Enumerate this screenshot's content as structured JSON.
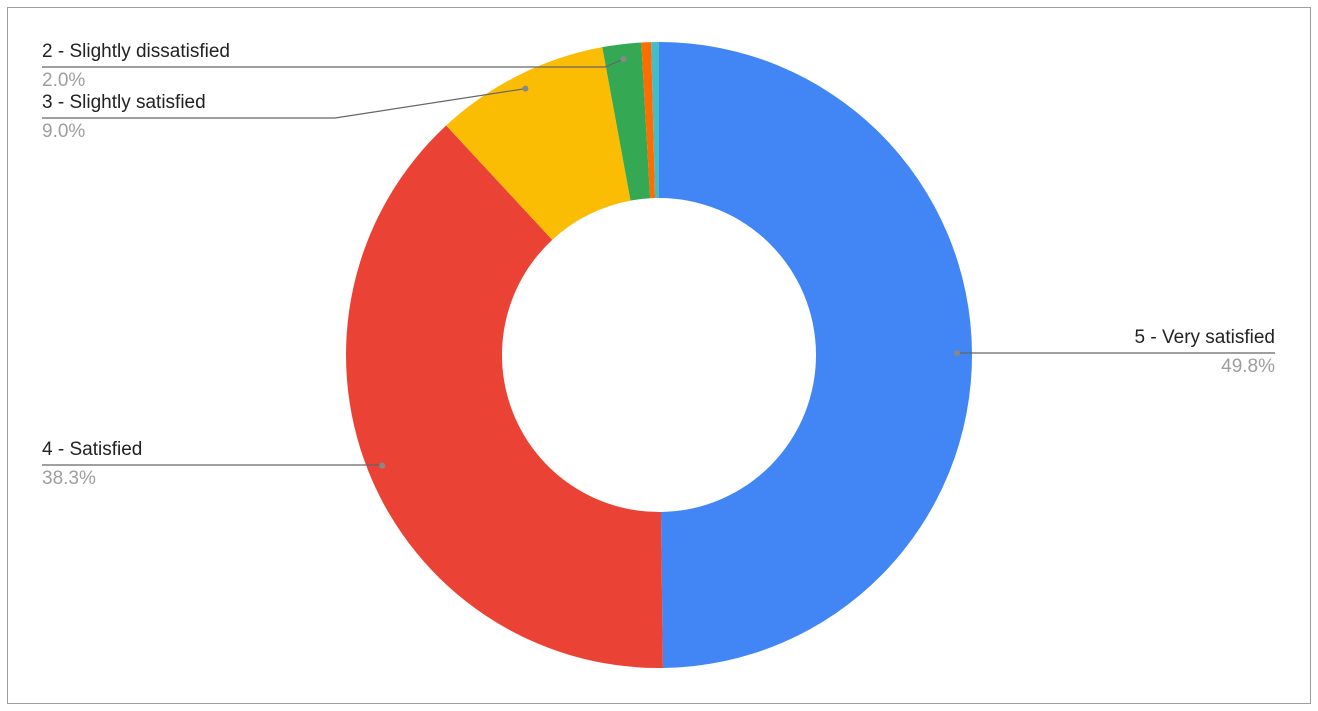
{
  "chart_data": {
    "type": "donut",
    "categories": [
      "5 - Very satisfied",
      "4 - Satisfied",
      "3 - Slightly satisfied",
      "2 - Slightly dissatisfied",
      null,
      null
    ],
    "values": [
      49.8,
      38.3,
      9.0,
      2.0,
      0.5,
      0.4
    ],
    "value_labels": [
      "49.8%",
      "38.3%",
      "9.0%",
      "2.0%",
      null,
      null
    ],
    "colors": [
      "#4285f4",
      "#ea4335",
      "#fbbc04",
      "#34a853",
      "#ff6d01",
      "#46bdc6"
    ]
  }
}
